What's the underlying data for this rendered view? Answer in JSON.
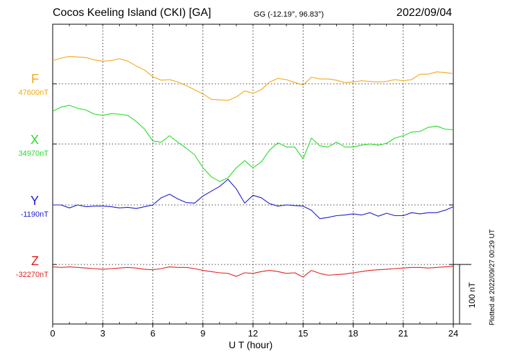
{
  "header": {
    "station": "Cocos Keeling Island (CKI)  [GA]",
    "coords": "GG (-12.19°,  96.83°)",
    "date": "2022/09/04"
  },
  "footer": {
    "plotted_at": "Plotted at 2022/09/27 00:29 UT",
    "scale_label": "100 nT"
  },
  "chart_data": {
    "type": "line",
    "xlabel": "U T (hour)",
    "xlim": [
      0,
      24
    ],
    "xticks": [
      0,
      3,
      6,
      9,
      12,
      15,
      18,
      21,
      24
    ],
    "scale_bar_nT": 100,
    "series": [
      {
        "name": "F",
        "baseline_label": "47600nT",
        "color": "#f0a818",
        "x": [
          0,
          0.5,
          1,
          1.5,
          2,
          2.5,
          3,
          3.5,
          4,
          4.5,
          5,
          5.5,
          6,
          6.5,
          7,
          7.5,
          8,
          8.5,
          9,
          9.5,
          10,
          10.5,
          11,
          11.5,
          12,
          12.5,
          13,
          13.5,
          14,
          14.5,
          15,
          15.5,
          16,
          16.5,
          17,
          17.5,
          18,
          18.5,
          19,
          19.5,
          20,
          20.5,
          21,
          21.5,
          22,
          22.5,
          23,
          23.5,
          24
        ],
        "values": [
          39,
          43,
          46,
          45,
          44,
          40,
          38,
          39,
          42,
          38,
          30,
          23,
          12,
          6,
          7,
          3,
          -3,
          -10,
          -17,
          -26,
          -27,
          -28,
          -22,
          -12,
          -16,
          -10,
          3,
          9,
          7,
          2,
          -2,
          11,
          8,
          8,
          6,
          2,
          3,
          5,
          4,
          3,
          4,
          7,
          5,
          7,
          16,
          16,
          20,
          19,
          17
        ]
      },
      {
        "name": "X",
        "baseline_label": "34970nT",
        "color": "#22dd22",
        "x": [
          0,
          0.5,
          1,
          1.5,
          2,
          2.5,
          3,
          3.5,
          4,
          4.5,
          5,
          5.5,
          6,
          6.5,
          7,
          7.5,
          8,
          8.5,
          9,
          9.5,
          10,
          10.5,
          11,
          11.5,
          12,
          12.5,
          13,
          13.5,
          14,
          14.5,
          15,
          15.5,
          16,
          16.5,
          17,
          17.5,
          18,
          18.5,
          19,
          19.5,
          20,
          20.5,
          21,
          21.5,
          22,
          22.5,
          23,
          23.5,
          24
        ],
        "values": [
          55,
          62,
          65,
          60,
          57,
          50,
          48,
          51,
          50,
          48,
          38,
          25,
          5,
          3,
          14,
          3,
          -7,
          -18,
          -40,
          -55,
          -63,
          -57,
          -40,
          -28,
          -40,
          -30,
          -10,
          2,
          -5,
          -5,
          -25,
          10,
          -3,
          -5,
          3,
          -5,
          -5,
          -2,
          0,
          -2,
          1,
          10,
          14,
          20,
          21,
          28,
          30,
          25,
          24
        ]
      },
      {
        "name": "Y",
        "baseline_label": "-1190nT",
        "color": "#1a1ad0",
        "x": [
          0,
          0.5,
          1,
          1.5,
          2,
          2.5,
          3,
          3.5,
          4,
          4.5,
          5,
          5.5,
          6,
          6.5,
          7,
          7.5,
          8,
          8.5,
          9,
          9.5,
          10,
          10.5,
          11,
          11.5,
          12,
          12.5,
          13,
          13.5,
          14,
          14.5,
          15,
          15.5,
          16,
          16.5,
          17,
          17.5,
          18,
          18.5,
          19,
          19.5,
          20,
          20.5,
          21,
          21.5,
          22,
          22.5,
          23,
          23.5,
          24
        ],
        "values": [
          0,
          0,
          -5,
          0,
          -3,
          -2,
          -2,
          -3,
          -5,
          -4,
          -6,
          -3,
          0,
          12,
          18,
          10,
          4,
          3,
          15,
          23,
          31,
          43,
          27,
          3,
          16,
          12,
          2,
          -2,
          0,
          -1,
          -2,
          -9,
          -23,
          -21,
          -18,
          -17,
          -15,
          -17,
          -13,
          -19,
          -14,
          -18,
          -18,
          -13,
          -15,
          -13,
          -13,
          -9,
          -3
        ]
      },
      {
        "name": "Z",
        "baseline_label": "-32270nT",
        "color": "#e02020",
        "x": [
          0,
          0.5,
          1,
          1.5,
          2,
          2.5,
          3,
          3.5,
          4,
          4.5,
          5,
          5.5,
          6,
          6.5,
          7,
          7.5,
          8,
          8.5,
          9,
          9.5,
          10,
          10.5,
          11,
          11.5,
          12,
          12.5,
          13,
          13.5,
          14,
          14.5,
          15,
          15.5,
          16,
          16.5,
          17,
          17.5,
          18,
          18.5,
          19,
          19.5,
          20,
          20.5,
          21,
          21.5,
          22,
          22.5,
          23,
          23.5,
          24
        ],
        "values": [
          -4,
          -5,
          -4,
          -5,
          -6,
          -7,
          -8,
          -7,
          -6,
          -5,
          -6,
          -8,
          -9,
          -7,
          -4,
          -5,
          -5,
          -7,
          -10,
          -12,
          -14,
          -15,
          -20,
          -14,
          -15,
          -12,
          -10,
          -12,
          -15,
          -14,
          -21,
          -10,
          -15,
          -18,
          -17,
          -16,
          -14,
          -12,
          -10,
          -9,
          -8,
          -7,
          -6,
          -5,
          -5,
          -6,
          -5,
          -4,
          -3
        ]
      }
    ]
  }
}
